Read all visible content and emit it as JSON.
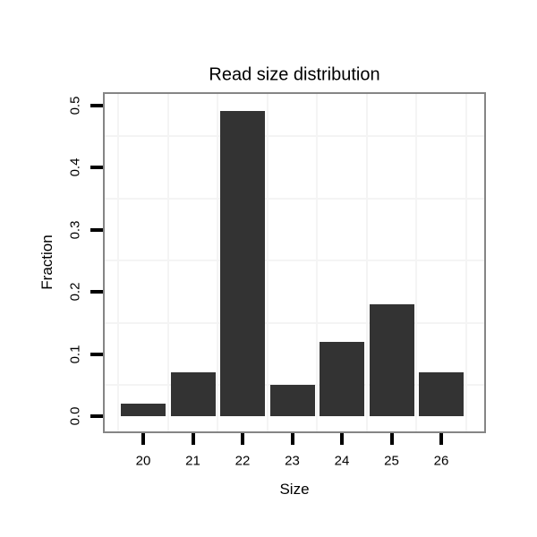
{
  "chart_data": {
    "type": "bar",
    "title": "Read size distribution",
    "xlabel": "Size",
    "ylabel": "Fraction",
    "categories": [
      "20",
      "21",
      "22",
      "23",
      "24",
      "25",
      "26"
    ],
    "values": [
      0.02,
      0.07,
      0.49,
      0.05,
      0.12,
      0.18,
      0.07
    ],
    "y_ticks": [
      {
        "value": 0.0,
        "label": "0.0"
      },
      {
        "value": 0.1,
        "label": "0.1"
      },
      {
        "value": 0.2,
        "label": "0.2"
      },
      {
        "value": 0.3,
        "label": "0.3"
      },
      {
        "value": 0.4,
        "label": "0.4"
      },
      {
        "value": 0.5,
        "label": "0.5"
      }
    ],
    "ylim": [
      0,
      0.5
    ],
    "grid": "minor-only",
    "legend": "none",
    "colors": {
      "bar": "#333333",
      "panel_border": "#858585",
      "grid_minor": "#f4f4f4",
      "tick": "#000000",
      "text": "#000000",
      "background": "#ffffff"
    }
  }
}
